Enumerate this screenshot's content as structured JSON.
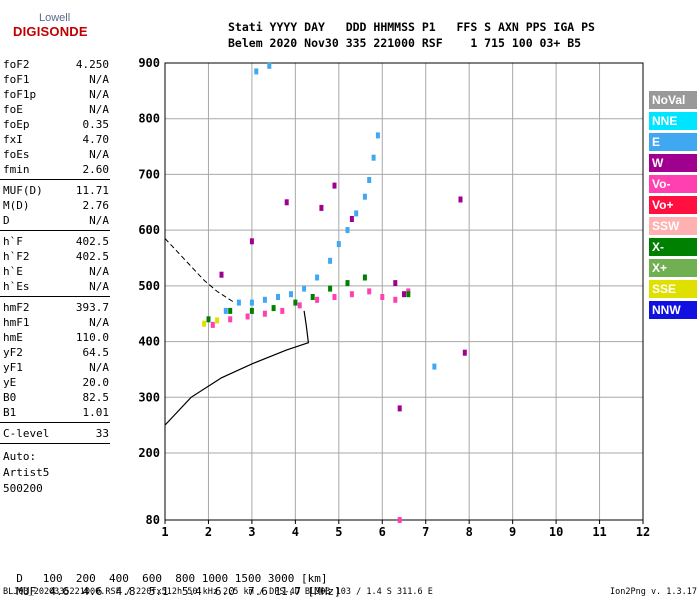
{
  "logo": {
    "line1": "Lowell",
    "line2": "DIGISONDE"
  },
  "header": {
    "row1": "Stati YYYY DAY   DDD HHMMSS P1   FFS S AXN PPS IGA PS",
    "row2": "Belem 2020 Nov30 335 221000 RSF    1 715 100 03+ B5"
  },
  "params_top": [
    {
      "k": "foF2",
      "v": "4.250"
    },
    {
      "k": "foF1",
      "v": "N/A"
    },
    {
      "k": "foF1p",
      "v": "N/A"
    },
    {
      "k": "foE",
      "v": "N/A"
    },
    {
      "k": "foEp",
      "v": "0.35"
    },
    {
      "k": "fxI",
      "v": "4.70"
    },
    {
      "k": "foEs",
      "v": "N/A"
    },
    {
      "k": "fmin",
      "v": "2.60"
    }
  ],
  "params_muf": [
    {
      "k": "MUF(D)",
      "v": "11.71"
    },
    {
      "k": "M(D)",
      "v": "2.76"
    },
    {
      "k": "D",
      "v": "N/A"
    }
  ],
  "params_heights": [
    {
      "k": "h`F",
      "v": "402.5"
    },
    {
      "k": "h`F2",
      "v": "402.5"
    },
    {
      "k": "h`E",
      "v": "N/A"
    },
    {
      "k": "h`Es",
      "v": "N/A"
    }
  ],
  "params_profile": [
    {
      "k": "hmF2",
      "v": "393.7"
    },
    {
      "k": "hmF1",
      "v": "N/A"
    },
    {
      "k": "hmE",
      "v": "110.0"
    },
    {
      "k": "yF2",
      "v": "64.5"
    },
    {
      "k": "yF1",
      "v": "N/A"
    },
    {
      "k": "yE",
      "v": "20.0"
    },
    {
      "k": "B0",
      "v": "82.5"
    },
    {
      "k": "B1",
      "v": "1.01"
    }
  ],
  "clevel": {
    "k": "C-level",
    "v": "33"
  },
  "auto": {
    "line1": "Auto:",
    "line2": "Artist5",
    "line3": "500200"
  },
  "legend": [
    {
      "label": "NoVal",
      "bg": "#999999",
      "fg": "#ffffff"
    },
    {
      "label": "NNE",
      "bg": "#00e5ff",
      "fg": "#ffffff"
    },
    {
      "label": "E",
      "bg": "#40a8f0",
      "fg": "#ffffff"
    },
    {
      "label": "W",
      "bg": "#a00090",
      "fg": "#ffffff"
    },
    {
      "label": "Vo-",
      "bg": "#ff40b0",
      "fg": "#ffffff"
    },
    {
      "label": "Vo+",
      "bg": "#ff1040",
      "fg": "#ffffff"
    },
    {
      "label": "SSW",
      "bg": "#ffb0b0",
      "fg": "#ffffff"
    },
    {
      "label": "X-",
      "bg": "#008000",
      "fg": "#ffffff"
    },
    {
      "label": "X+",
      "bg": "#70b050",
      "fg": "#ffffff"
    },
    {
      "label": "SSE",
      "bg": "#e0e000",
      "fg": "#ffffff"
    },
    {
      "label": "NNW",
      "bg": "#1010e0",
      "fg": "#ffffff"
    }
  ],
  "dmuf": {
    "d_label": "D",
    "d_values": [
      "100",
      "200",
      "400",
      "600",
      "800",
      "1000",
      "1500",
      "3000"
    ],
    "d_unit": "[km]",
    "muf_label": "MUF",
    "muf_values": [
      "4.6",
      "4.6",
      "4.8",
      "5.1",
      "5.4",
      "6.0",
      "7.6",
      "11.7"
    ],
    "muf_unit": "[MHz]"
  },
  "footer": {
    "left": "BLJ03_2020335221000.RSF / 220fx512h 50 kHz 2.5 km / DPS-4D BLJ03 103 / 1.4 S 311.6 E",
    "right": "Ion2Png v. 1.3.17"
  },
  "chart_data": {
    "type": "scatter",
    "xlim": [
      1,
      12
    ],
    "ylim": [
      80,
      900
    ],
    "x_ticks": [
      1,
      2,
      3,
      4,
      5,
      6,
      7,
      8,
      9,
      10,
      11,
      12
    ],
    "y_ticks": [
      80,
      200,
      300,
      400,
      500,
      600,
      700,
      800,
      900
    ],
    "grid": true,
    "series": [
      {
        "name": "E",
        "color": "#40a8f0",
        "points": [
          [
            2.4,
            455
          ],
          [
            2.7,
            470
          ],
          [
            3.0,
            470
          ],
          [
            3.3,
            475
          ],
          [
            3.6,
            480
          ],
          [
            3.9,
            485
          ],
          [
            4.2,
            495
          ],
          [
            4.5,
            515
          ],
          [
            4.8,
            545
          ],
          [
            5.0,
            575
          ],
          [
            5.2,
            600
          ],
          [
            5.4,
            630
          ],
          [
            5.6,
            660
          ],
          [
            5.7,
            690
          ],
          [
            5.8,
            730
          ],
          [
            5.9,
            770
          ],
          [
            3.1,
            885
          ],
          [
            3.4,
            895
          ],
          [
            7.2,
            355
          ]
        ]
      },
      {
        "name": "W",
        "color": "#a00090",
        "points": [
          [
            2.3,
            520
          ],
          [
            3.0,
            580
          ],
          [
            3.8,
            650
          ],
          [
            4.6,
            640
          ],
          [
            4.9,
            680
          ],
          [
            5.3,
            620
          ],
          [
            6.3,
            505
          ],
          [
            6.5,
            485
          ],
          [
            7.8,
            655
          ],
          [
            7.9,
            380
          ],
          [
            6.4,
            280
          ]
        ]
      },
      {
        "name": "Vo-",
        "color": "#ff40b0",
        "points": [
          [
            2.1,
            430
          ],
          [
            2.5,
            440
          ],
          [
            2.9,
            445
          ],
          [
            3.3,
            450
          ],
          [
            3.7,
            455
          ],
          [
            4.1,
            465
          ],
          [
            4.5,
            475
          ],
          [
            4.9,
            480
          ],
          [
            5.3,
            485
          ],
          [
            5.7,
            490
          ],
          [
            6.0,
            480
          ],
          [
            6.3,
            475
          ],
          [
            6.6,
            490
          ],
          [
            6.4,
            80
          ]
        ]
      },
      {
        "name": "X-",
        "color": "#008000",
        "points": [
          [
            2.0,
            440
          ],
          [
            2.5,
            455
          ],
          [
            3.0,
            455
          ],
          [
            3.5,
            460
          ],
          [
            4.0,
            470
          ],
          [
            4.4,
            480
          ],
          [
            4.8,
            495
          ],
          [
            5.2,
            505
          ],
          [
            5.6,
            515
          ],
          [
            6.6,
            485
          ]
        ]
      },
      {
        "name": "SSE",
        "color": "#e0e000",
        "points": [
          [
            1.9,
            432
          ],
          [
            2.2,
            438
          ]
        ]
      }
    ],
    "hF_profile": {
      "color": "#000000",
      "points": [
        [
          1.0,
          250
        ],
        [
          1.6,
          300
        ],
        [
          2.3,
          335
        ],
        [
          3.0,
          360
        ],
        [
          3.8,
          385
        ],
        [
          4.3,
          398
        ],
        [
          4.25,
          430
        ],
        [
          4.2,
          455
        ]
      ]
    },
    "dashed_trace": {
      "color": "#000000",
      "points": [
        [
          1.0,
          585
        ],
        [
          1.3,
          560
        ],
        [
          1.6,
          535
        ],
        [
          1.9,
          510
        ],
        [
          2.2,
          490
        ],
        [
          2.6,
          470
        ]
      ]
    }
  }
}
